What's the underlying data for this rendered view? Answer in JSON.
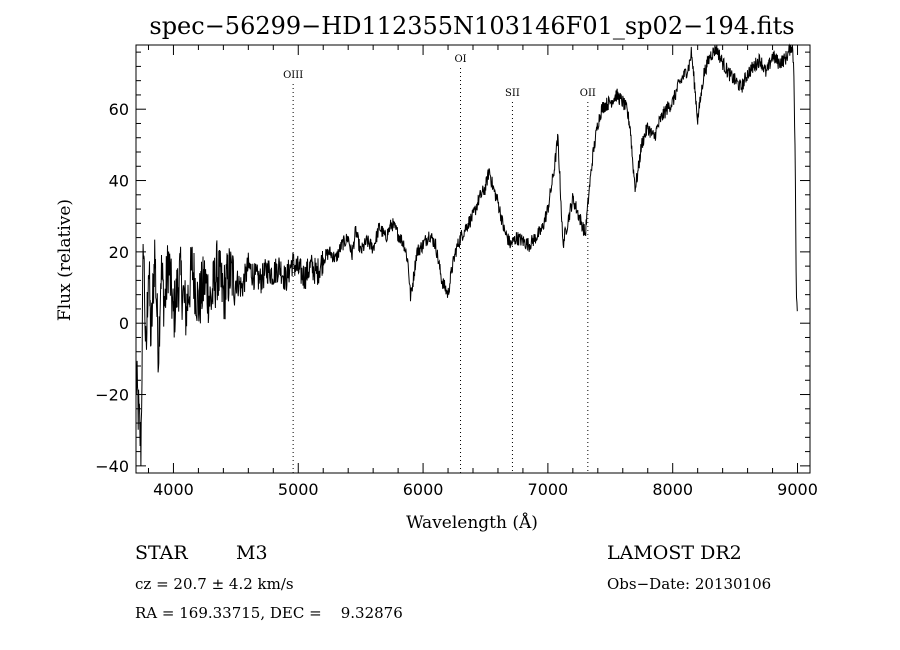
{
  "chart_data": {
    "type": "line",
    "title": "spec−56299−HD112355N103146F01_sp02−194.fits",
    "xlabel": "Wavelength (Å)",
    "ylabel": "Flux (relative)",
    "xlim": [
      3700,
      9100
    ],
    "ylim": [
      -42,
      78
    ],
    "x_ticks": [
      4000,
      5000,
      6000,
      7000,
      8000,
      9000
    ],
    "y_ticks": [
      -40,
      -20,
      0,
      20,
      40,
      60
    ],
    "y_tick_labels": [
      "−40",
      "−20",
      "0",
      "20",
      "40",
      "60"
    ],
    "grid": false,
    "series": [
      {
        "color": "#000000",
        "x": [
          3700,
          3740,
          3760,
          3780,
          3800,
          3820,
          3850,
          3880,
          3900,
          3930,
          3960,
          4000,
          4050,
          4100,
          4150,
          4200,
          4250,
          4300,
          4350,
          4400,
          4450,
          4500,
          4550,
          4600,
          4650,
          4700,
          4750,
          4800,
          4850,
          4900,
          4950,
          5000,
          5050,
          5100,
          5150,
          5200,
          5250,
          5300,
          5350,
          5400,
          5430,
          5460,
          5500,
          5550,
          5600,
          5650,
          5700,
          5750,
          5800,
          5850,
          5880,
          5900,
          5920,
          5950,
          6000,
          6050,
          6100,
          6150,
          6200,
          6230,
          6260,
          6300,
          6330,
          6360,
          6400,
          6450,
          6500,
          6530,
          6560,
          6600,
          6650,
          6700,
          6750,
          6800,
          6850,
          6900,
          6950,
          7000,
          7050,
          7080,
          7100,
          7120,
          7150,
          7200,
          7250,
          7300,
          7330,
          7360,
          7400,
          7430,
          7450,
          7500,
          7550,
          7600,
          7630,
          7660,
          7680,
          7700,
          7720,
          7750,
          7800,
          7850,
          7900,
          7950,
          8000,
          8050,
          8100,
          8130,
          8150,
          8180,
          8200,
          8250,
          8300,
          8350,
          8400,
          8450,
          8500,
          8550,
          8600,
          8650,
          8700,
          8750,
          8800,
          8850,
          8900,
          8930,
          8950,
          8960,
          8970,
          8980,
          8990,
          9000
        ],
        "y": [
          -15,
          -35,
          25,
          -12,
          18,
          -5,
          20,
          -8,
          15,
          5,
          18,
          2,
          14,
          3,
          16,
          5,
          12,
          6,
          15,
          8,
          14,
          12,
          10,
          16,
          13,
          12,
          15,
          14,
          16,
          12,
          17,
          15,
          13,
          16,
          14,
          18,
          20,
          18,
          22,
          24,
          19,
          26,
          20,
          23,
          21,
          27,
          24,
          28,
          25,
          22,
          17,
          7,
          12,
          20,
          22,
          25,
          22,
          12,
          8,
          15,
          20,
          24,
          26,
          28,
          30,
          35,
          38,
          43,
          38,
          34,
          26,
          22,
          24,
          23,
          22,
          24,
          26,
          32,
          43,
          52,
          38,
          22,
          27,
          35,
          30,
          25,
          37,
          47,
          56,
          60,
          61,
          62,
          64,
          62,
          60,
          55,
          45,
          38,
          42,
          50,
          55,
          52,
          57,
          60,
          62,
          67,
          70,
          72,
          76,
          65,
          57,
          70,
          75,
          77,
          73,
          70,
          68,
          66,
          70,
          72,
          74,
          70,
          75,
          73,
          74,
          76,
          78,
          77,
          72,
          50,
          10,
          0
        ]
      }
    ],
    "line_markers": [
      {
        "label": "OIII",
        "x": 4959
      },
      {
        "label": "OI",
        "x": 6300
      },
      {
        "label": "OII",
        "x": 7320
      },
      {
        "label": "SII",
        "x": 6716
      }
    ]
  },
  "info": {
    "object_class": "STAR",
    "subclass": "M3",
    "survey": "LAMOST DR2",
    "cz": "cz = 20.7 ± 4.2 km/s",
    "obs_date": "Obs−Date: 20130106",
    "coords": "RA = 169.33715, DEC =    9.32876"
  }
}
